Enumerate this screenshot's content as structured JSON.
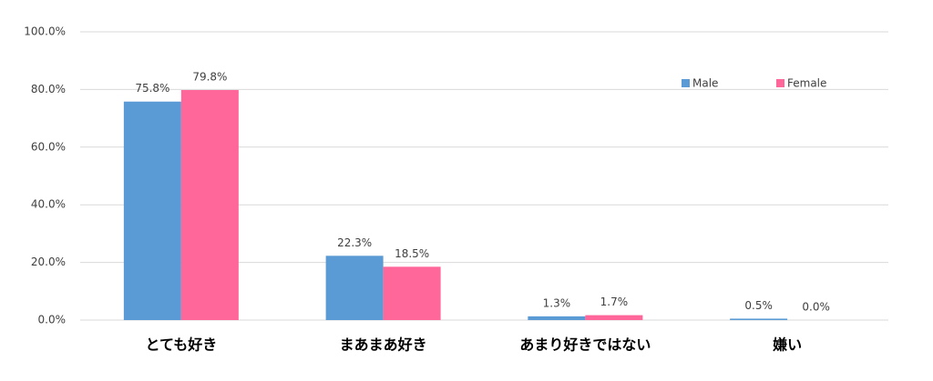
{
  "chart_data": {
    "type": "bar",
    "categories": [
      "とても好き",
      "まあまあ好き",
      "あまり好きではない",
      "嫌い"
    ],
    "series": [
      {
        "name": "Male",
        "color": "#5b9bd5",
        "values": [
          75.8,
          22.3,
          1.3,
          0.5
        ],
        "value_labels": [
          "75.8%",
          "22.3%",
          "1.3%",
          "0.5%"
        ]
      },
      {
        "name": "Female",
        "color": "#ff6699",
        "values": [
          79.8,
          18.5,
          1.7,
          0.0
        ],
        "value_labels": [
          "79.8%",
          "18.5%",
          "1.7%",
          "0.0%"
        ]
      }
    ],
    "ylim": [
      0,
      100
    ],
    "yticks": [
      {
        "value": 0,
        "label": "0.0%"
      },
      {
        "value": 20,
        "label": "20.0%"
      },
      {
        "value": 40,
        "label": "40.0%"
      },
      {
        "value": 60,
        "label": "60.0%"
      },
      {
        "value": 80,
        "label": "80.0%"
      },
      {
        "value": 100,
        "label": "100.0%"
      }
    ],
    "grid": true,
    "legend": "upper-right"
  }
}
